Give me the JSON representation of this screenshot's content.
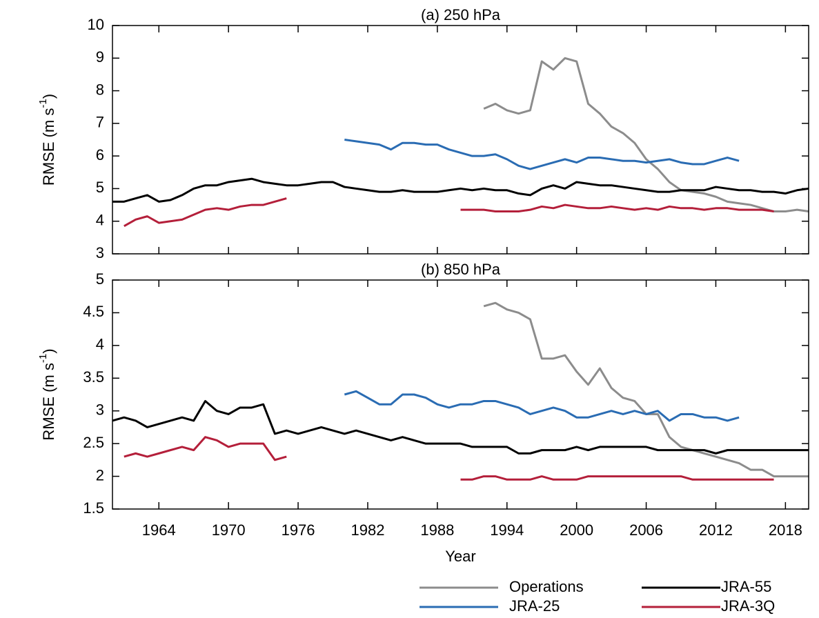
{
  "chart_data": [
    {
      "type": "line",
      "title": "(a) 250 hPa",
      "ylabel_parts": [
        "RMSE (m s",
        "-1",
        ")"
      ],
      "x": [
        1960,
        1961,
        1962,
        1963,
        1964,
        1965,
        1966,
        1967,
        1968,
        1969,
        1970,
        1971,
        1972,
        1973,
        1974,
        1975,
        1976,
        1977,
        1978,
        1979,
        1980,
        1981,
        1982,
        1983,
        1984,
        1985,
        1986,
        1987,
        1988,
        1989,
        1990,
        1991,
        1992,
        1993,
        1994,
        1995,
        1996,
        1997,
        1998,
        1999,
        2000,
        2001,
        2002,
        2003,
        2004,
        2005,
        2006,
        2007,
        2008,
        2009,
        2010,
        2011,
        2012,
        2013,
        2014,
        2015,
        2016,
        2017,
        2018,
        2019,
        2020
      ],
      "xlim": [
        1960,
        2020
      ],
      "xticks": [
        1964,
        1970,
        1976,
        1982,
        1988,
        1994,
        2000,
        2006,
        2012,
        2018
      ],
      "ylim": [
        3,
        10
      ],
      "yticks": [
        3,
        4,
        5,
        6,
        7,
        8,
        9,
        10
      ],
      "series": [
        {
          "name": "Operations",
          "color": "#8c8c8c",
          "values": [
            null,
            null,
            null,
            null,
            null,
            null,
            null,
            null,
            null,
            null,
            null,
            null,
            null,
            null,
            null,
            null,
            null,
            null,
            null,
            null,
            null,
            null,
            null,
            null,
            null,
            null,
            null,
            null,
            null,
            null,
            null,
            null,
            7.45,
            7.6,
            7.4,
            7.3,
            7.4,
            8.9,
            8.65,
            9.0,
            8.9,
            7.6,
            7.3,
            6.9,
            6.7,
            6.4,
            5.9,
            5.6,
            5.2,
            4.95,
            4.9,
            4.85,
            4.75,
            4.6,
            4.55,
            4.5,
            4.4,
            4.3,
            4.3,
            4.35,
            4.3
          ]
        },
        {
          "name": "JRA-25",
          "color": "#2a6cb3",
          "values": [
            null,
            null,
            null,
            null,
            null,
            null,
            null,
            null,
            null,
            null,
            null,
            null,
            null,
            null,
            null,
            null,
            null,
            null,
            null,
            null,
            6.5,
            6.45,
            6.4,
            6.35,
            6.2,
            6.4,
            6.4,
            6.35,
            6.35,
            6.2,
            6.1,
            6.0,
            6.0,
            6.05,
            5.9,
            5.7,
            5.6,
            5.7,
            5.8,
            5.9,
            5.8,
            5.95,
            5.95,
            5.9,
            5.85,
            5.85,
            5.8,
            5.85,
            5.9,
            5.8,
            5.75,
            5.75,
            5.85,
            5.95,
            5.85,
            null,
            null,
            null,
            null,
            null,
            null
          ]
        },
        {
          "name": "JRA-55",
          "color": "#000000",
          "values": [
            4.6,
            4.6,
            4.7,
            4.8,
            4.6,
            4.65,
            4.8,
            5.0,
            5.1,
            5.1,
            5.2,
            5.25,
            5.3,
            5.2,
            5.15,
            5.1,
            5.1,
            5.15,
            5.2,
            5.2,
            5.05,
            5.0,
            4.95,
            4.9,
            4.9,
            4.95,
            4.9,
            4.9,
            4.9,
            4.95,
            5.0,
            4.95,
            5.0,
            4.95,
            4.95,
            4.85,
            4.8,
            5.0,
            5.1,
            5.0,
            5.2,
            5.15,
            5.1,
            5.1,
            5.05,
            5.0,
            4.95,
            4.9,
            4.9,
            4.95,
            4.95,
            4.95,
            5.05,
            5.0,
            4.95,
            4.95,
            4.9,
            4.9,
            4.85,
            4.95,
            5.0
          ]
        },
        {
          "name": "JRA-3Q",
          "color": "#b41f3a",
          "values": [
            null,
            3.85,
            4.05,
            4.15,
            3.95,
            4.0,
            4.05,
            4.2,
            4.35,
            4.4,
            4.35,
            4.45,
            4.5,
            4.5,
            4.6,
            4.7,
            null,
            null,
            null,
            null,
            null,
            null,
            null,
            null,
            null,
            null,
            null,
            null,
            null,
            null,
            4.35,
            4.35,
            4.35,
            4.3,
            4.3,
            4.3,
            4.35,
            4.45,
            4.4,
            4.5,
            4.45,
            4.4,
            4.4,
            4.45,
            4.4,
            4.35,
            4.4,
            4.35,
            4.45,
            4.4,
            4.4,
            4.35,
            4.4,
            4.4,
            4.35,
            4.35,
            4.35,
            4.3,
            null,
            null,
            null
          ]
        }
      ]
    },
    {
      "type": "line",
      "title": "(b) 850 hPa",
      "xlabel": "Year",
      "ylabel_parts": [
        "RMSE (m s",
        "-1",
        ")"
      ],
      "x": [
        1960,
        1961,
        1962,
        1963,
        1964,
        1965,
        1966,
        1967,
        1968,
        1969,
        1970,
        1971,
        1972,
        1973,
        1974,
        1975,
        1976,
        1977,
        1978,
        1979,
        1980,
        1981,
        1982,
        1983,
        1984,
        1985,
        1986,
        1987,
        1988,
        1989,
        1990,
        1991,
        1992,
        1993,
        1994,
        1995,
        1996,
        1997,
        1998,
        1999,
        2000,
        2001,
        2002,
        2003,
        2004,
        2005,
        2006,
        2007,
        2008,
        2009,
        2010,
        2011,
        2012,
        2013,
        2014,
        2015,
        2016,
        2017,
        2018,
        2019,
        2020
      ],
      "xlim": [
        1960,
        2020
      ],
      "xticks": [
        1964,
        1970,
        1976,
        1982,
        1988,
        1994,
        2000,
        2006,
        2012,
        2018
      ],
      "ylim": [
        1.5,
        5
      ],
      "yticks": [
        1.5,
        2,
        2.5,
        3,
        3.5,
        4,
        4.5,
        5
      ],
      "series": [
        {
          "name": "Operations",
          "color": "#8c8c8c",
          "values": [
            null,
            null,
            null,
            null,
            null,
            null,
            null,
            null,
            null,
            null,
            null,
            null,
            null,
            null,
            null,
            null,
            null,
            null,
            null,
            null,
            null,
            null,
            null,
            null,
            null,
            null,
            null,
            null,
            null,
            null,
            null,
            null,
            4.6,
            4.65,
            4.55,
            4.5,
            4.4,
            3.8,
            3.8,
            3.85,
            3.6,
            3.4,
            3.65,
            3.35,
            3.2,
            3.15,
            2.95,
            2.95,
            2.6,
            2.45,
            2.4,
            2.35,
            2.3,
            2.25,
            2.2,
            2.1,
            2.1,
            2.0,
            2.0,
            2.0,
            2.0
          ]
        },
        {
          "name": "JRA-25",
          "color": "#2a6cb3",
          "values": [
            null,
            null,
            null,
            null,
            null,
            null,
            null,
            null,
            null,
            null,
            null,
            null,
            null,
            null,
            null,
            null,
            null,
            null,
            null,
            null,
            3.25,
            3.3,
            3.2,
            3.1,
            3.1,
            3.25,
            3.25,
            3.2,
            3.1,
            3.05,
            3.1,
            3.1,
            3.15,
            3.15,
            3.1,
            3.05,
            2.95,
            3.0,
            3.05,
            3.0,
            2.9,
            2.9,
            2.95,
            3.0,
            2.95,
            3.0,
            2.95,
            3.0,
            2.85,
            2.95,
            2.95,
            2.9,
            2.9,
            2.85,
            2.9,
            null,
            null,
            null,
            null,
            null,
            null
          ]
        },
        {
          "name": "JRA-55",
          "color": "#000000",
          "values": [
            2.85,
            2.9,
            2.85,
            2.75,
            2.8,
            2.85,
            2.9,
            2.85,
            3.15,
            3.0,
            2.95,
            3.05,
            3.05,
            3.1,
            2.65,
            2.7,
            2.65,
            2.7,
            2.75,
            2.7,
            2.65,
            2.7,
            2.65,
            2.6,
            2.55,
            2.6,
            2.55,
            2.5,
            2.5,
            2.5,
            2.5,
            2.45,
            2.45,
            2.45,
            2.45,
            2.35,
            2.35,
            2.4,
            2.4,
            2.4,
            2.45,
            2.4,
            2.45,
            2.45,
            2.45,
            2.45,
            2.45,
            2.4,
            2.4,
            2.4,
            2.4,
            2.4,
            2.35,
            2.4,
            2.4,
            2.4,
            2.4,
            2.4,
            2.4,
            2.4,
            2.4
          ]
        },
        {
          "name": "JRA-3Q",
          "color": "#b41f3a",
          "values": [
            null,
            2.3,
            2.35,
            2.3,
            2.35,
            2.4,
            2.45,
            2.4,
            2.6,
            2.55,
            2.45,
            2.5,
            2.5,
            2.5,
            2.25,
            2.3,
            null,
            null,
            null,
            null,
            null,
            null,
            null,
            null,
            null,
            null,
            null,
            null,
            null,
            null,
            1.95,
            1.95,
            2.0,
            2.0,
            1.95,
            1.95,
            1.95,
            2.0,
            1.95,
            1.95,
            1.95,
            2.0,
            2.0,
            2.0,
            2.0,
            2.0,
            2.0,
            2.0,
            2.0,
            2.0,
            1.95,
            1.95,
            1.95,
            1.95,
            1.95,
            1.95,
            1.95,
            1.95,
            null,
            null,
            null
          ]
        }
      ]
    }
  ]
}
